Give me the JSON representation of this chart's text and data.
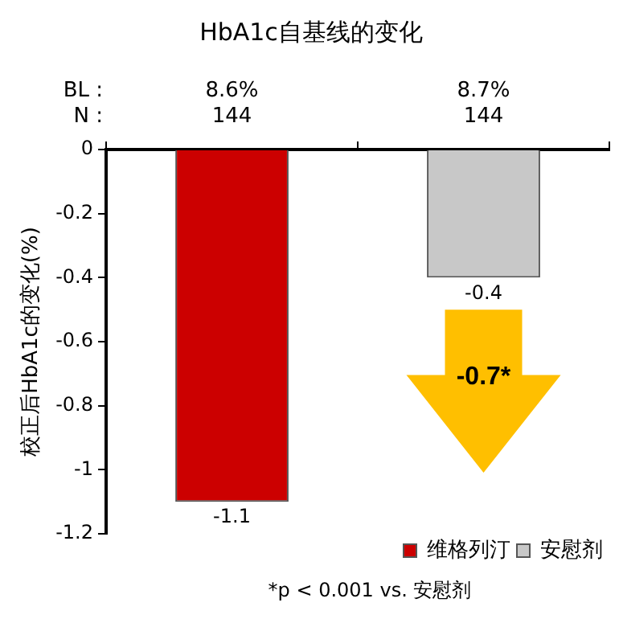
{
  "chart_data": {
    "type": "bar",
    "title": "HbA1c自基线的变化",
    "ylabel": "校正后HbA1c的变化(%)",
    "categories": [
      null,
      null
    ],
    "series": [
      {
        "name": "维格列汀",
        "color": "#cc0000",
        "values": [
          -1.1,
          null
        ]
      },
      {
        "name": "安慰剂",
        "color": "#c8c8c8",
        "values": [
          null,
          -0.4
        ]
      }
    ],
    "ylim": [
      -1.2,
      0
    ],
    "yticks": [
      0,
      -0.2,
      -0.4,
      -0.6,
      -0.8,
      -1,
      -1.2
    ],
    "data_labels": true,
    "grid": false,
    "legend": "bottom right",
    "tick_labels": "y",
    "annotations": [
      "BL :",
      "8.6%",
      "8.7%",
      "N :",
      "144",
      "144",
      "-0.7*",
      "*p < 0.001 vs. 安慰剂"
    ]
  }
}
